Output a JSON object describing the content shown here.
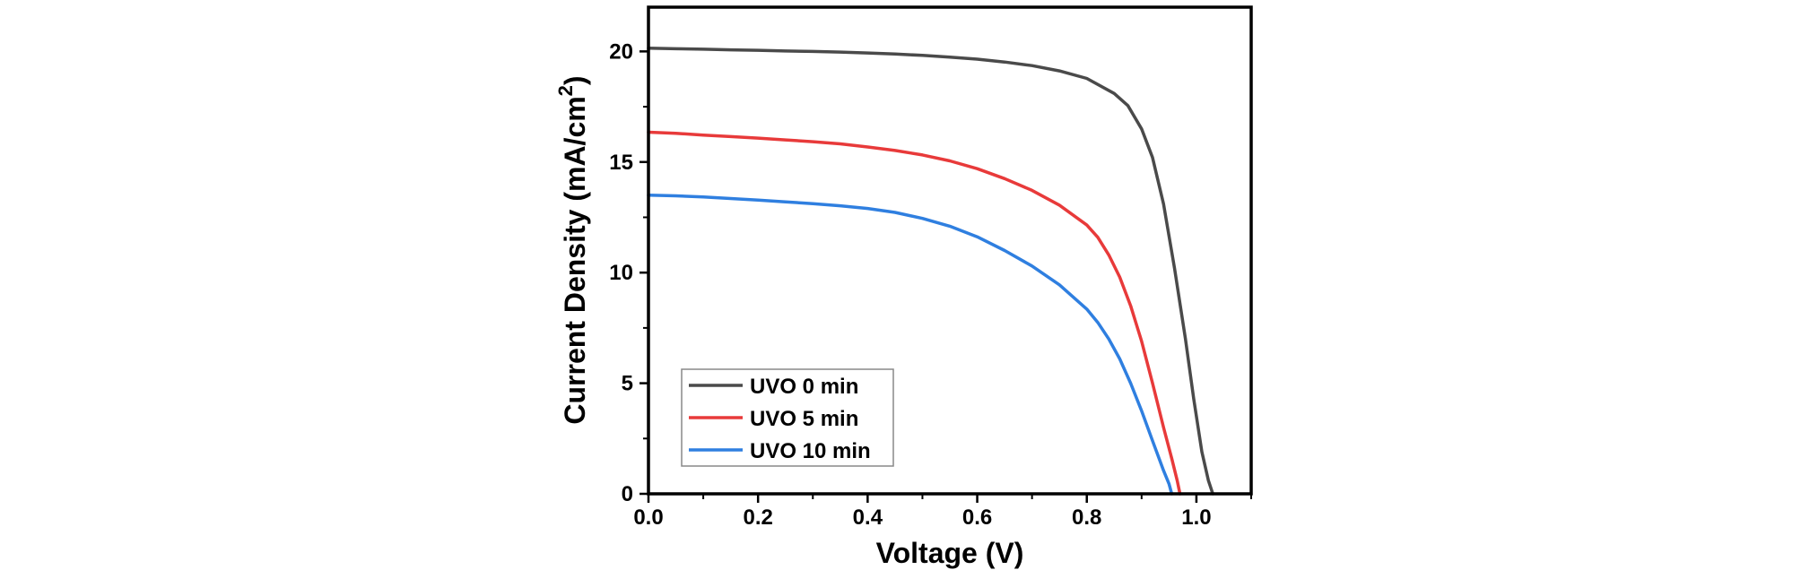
{
  "chart_data": {
    "type": "line",
    "title": "",
    "xlabel": "Voltage (V)",
    "ylabel": "Current Density (mA/cm",
    "ylabel_superscript": "2",
    "ylabel_close": ")",
    "xlim": [
      0.0,
      1.1
    ],
    "ylim": [
      0,
      22
    ],
    "xticks": [
      0.0,
      0.2,
      0.4,
      0.6,
      0.8,
      1.0
    ],
    "xtick_labels": [
      "0.0",
      "0.2",
      "0.4",
      "0.6",
      "0.8",
      "1.0"
    ],
    "yticks": [
      0,
      5,
      10,
      15,
      20
    ],
    "ytick_labels": [
      "0",
      "5",
      "10",
      "15",
      "20"
    ],
    "grid": false,
    "legend_position": "bottom-left",
    "series": [
      {
        "name": "UVO 0 min",
        "color": "#4a4a4a",
        "points": [
          [
            0.0,
            20.15
          ],
          [
            0.05,
            20.12
          ],
          [
            0.1,
            20.1
          ],
          [
            0.15,
            20.07
          ],
          [
            0.2,
            20.05
          ],
          [
            0.25,
            20.02
          ],
          [
            0.3,
            20.0
          ],
          [
            0.35,
            19.97
          ],
          [
            0.4,
            19.93
          ],
          [
            0.45,
            19.88
          ],
          [
            0.5,
            19.82
          ],
          [
            0.55,
            19.74
          ],
          [
            0.6,
            19.65
          ],
          [
            0.65,
            19.52
          ],
          [
            0.7,
            19.36
          ],
          [
            0.75,
            19.12
          ],
          [
            0.8,
            18.78
          ],
          [
            0.85,
            18.1
          ],
          [
            0.875,
            17.55
          ],
          [
            0.9,
            16.5
          ],
          [
            0.92,
            15.2
          ],
          [
            0.94,
            13.1
          ],
          [
            0.96,
            10.2
          ],
          [
            0.98,
            7.0
          ],
          [
            0.995,
            4.3
          ],
          [
            1.01,
            1.9
          ],
          [
            1.022,
            0.6
          ],
          [
            1.03,
            0.0
          ]
        ]
      },
      {
        "name": "UVO 5 min",
        "color": "#e83a3a",
        "points": [
          [
            0.0,
            16.35
          ],
          [
            0.05,
            16.3
          ],
          [
            0.1,
            16.22
          ],
          [
            0.15,
            16.15
          ],
          [
            0.2,
            16.08
          ],
          [
            0.25,
            16.0
          ],
          [
            0.3,
            15.92
          ],
          [
            0.35,
            15.82
          ],
          [
            0.4,
            15.68
          ],
          [
            0.45,
            15.52
          ],
          [
            0.5,
            15.32
          ],
          [
            0.55,
            15.05
          ],
          [
            0.6,
            14.7
          ],
          [
            0.65,
            14.25
          ],
          [
            0.7,
            13.72
          ],
          [
            0.75,
            13.05
          ],
          [
            0.8,
            12.15
          ],
          [
            0.82,
            11.6
          ],
          [
            0.84,
            10.8
          ],
          [
            0.86,
            9.8
          ],
          [
            0.88,
            8.5
          ],
          [
            0.9,
            6.9
          ],
          [
            0.92,
            5.0
          ],
          [
            0.94,
            3.0
          ],
          [
            0.955,
            1.6
          ],
          [
            0.965,
            0.6
          ],
          [
            0.97,
            0.0
          ]
        ]
      },
      {
        "name": "UVO 10 min",
        "color": "#2f7fe0",
        "points": [
          [
            0.0,
            13.5
          ],
          [
            0.05,
            13.47
          ],
          [
            0.1,
            13.42
          ],
          [
            0.15,
            13.35
          ],
          [
            0.2,
            13.28
          ],
          [
            0.25,
            13.2
          ],
          [
            0.3,
            13.12
          ],
          [
            0.35,
            13.02
          ],
          [
            0.4,
            12.9
          ],
          [
            0.45,
            12.72
          ],
          [
            0.5,
            12.45
          ],
          [
            0.55,
            12.1
          ],
          [
            0.6,
            11.62
          ],
          [
            0.65,
            11.0
          ],
          [
            0.7,
            10.3
          ],
          [
            0.75,
            9.45
          ],
          [
            0.8,
            8.35
          ],
          [
            0.82,
            7.75
          ],
          [
            0.84,
            7.0
          ],
          [
            0.86,
            6.1
          ],
          [
            0.88,
            5.0
          ],
          [
            0.9,
            3.75
          ],
          [
            0.92,
            2.4
          ],
          [
            0.94,
            1.05
          ],
          [
            0.95,
            0.45
          ],
          [
            0.955,
            0.0
          ]
        ]
      }
    ]
  }
}
